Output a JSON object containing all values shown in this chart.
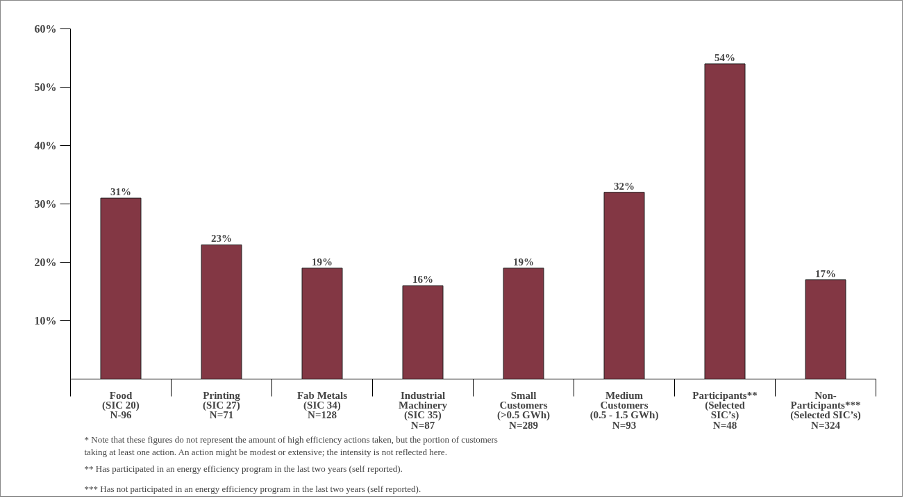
{
  "chart_data": {
    "type": "bar",
    "categories": [
      "Food\n(SIC 20)\nN-96",
      "Printing\n(SIC 27)\nN=71",
      "Fab Metals\n(SIC 34)\nN=128",
      "Industrial\nMachinery\n(SIC 35)\nN=87",
      "Small\nCustomers\n(>0.5 GWh)\nN=289",
      "Medium\nCustomers\n(0.5 - 1.5 GWh)\nN=93",
      "Participants**\n(Selected\nSIC’s)\nN=48",
      "Non-\nParticipants***\n(Selected SIC’s)\nN=324"
    ],
    "values": [
      31,
      23,
      19,
      16,
      19,
      32,
      54,
      17
    ],
    "color": "#833744",
    "value_labels": [
      "31%",
      "23%",
      "19%",
      "16%",
      "19%",
      "32%",
      "54%",
      "17%"
    ],
    "ylim": [
      0,
      60
    ],
    "yticks": [
      {
        "value": 10,
        "label": "10%"
      },
      {
        "value": 20,
        "label": "20%"
      },
      {
        "value": 30,
        "label": "30%"
      },
      {
        "value": 40,
        "label": "40%"
      },
      {
        "value": 50,
        "label": "50%"
      },
      {
        "value": 60,
        "label": "60%"
      }
    ],
    "grid": false,
    "annotations": [
      "* Note that these figures do not represent the amount of high efficiency actions taken, but the portion of customers taking at least one action.  An action might be modest or extensive; the intensity is not reflected here.",
      "** Has participated in an energy efficiency program in the last two years (self reported).",
      "*** Has not participated in an energy efficiency program in the last two years (self reported)."
    ]
  }
}
